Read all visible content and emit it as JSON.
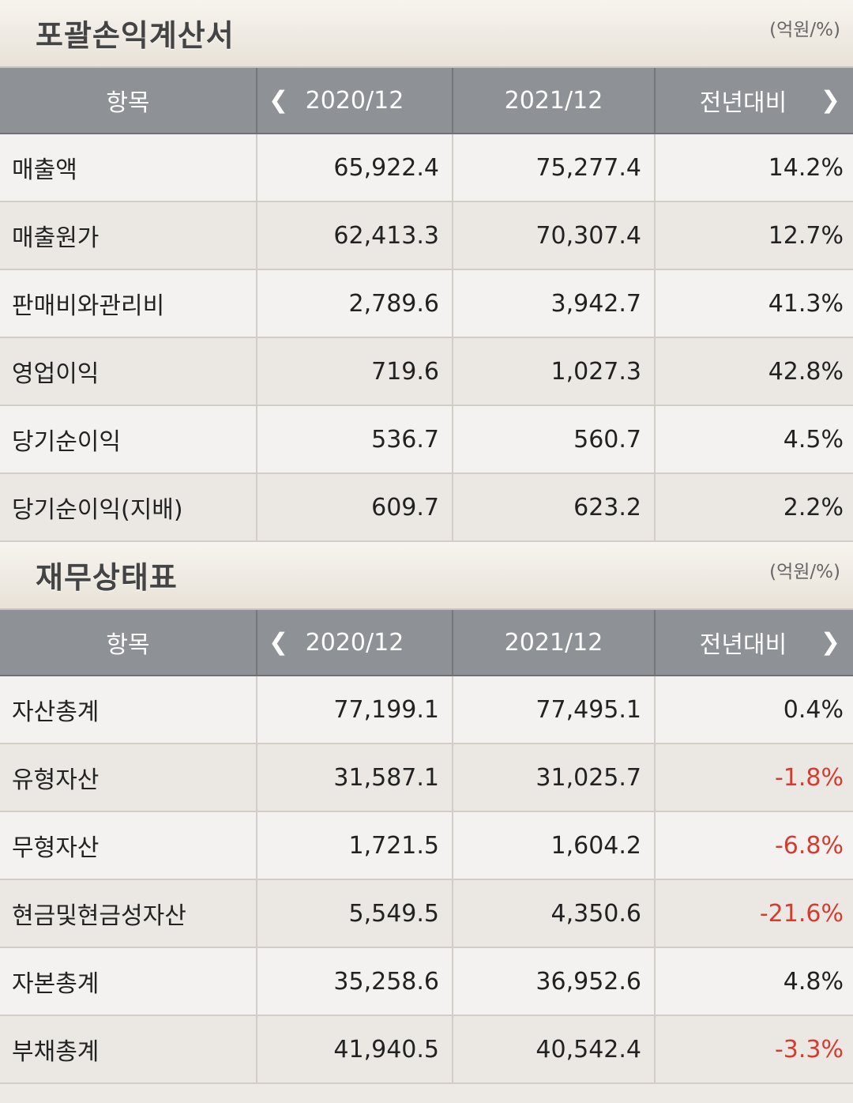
{
  "income": {
    "title": "포괄손익계산서",
    "unit": "(억원/%)",
    "headers": {
      "item": "항목",
      "prev": "2020/12",
      "curr": "2021/12",
      "yoy": "전년대비"
    },
    "rows": [
      {
        "label": "매출액",
        "prev": "65,922.4",
        "curr": "75,277.4",
        "yoy": "14.2%"
      },
      {
        "label": "매출원가",
        "prev": "62,413.3",
        "curr": "70,307.4",
        "yoy": "12.7%"
      },
      {
        "label": "판매비와관리비",
        "prev": "2,789.6",
        "curr": "3,942.7",
        "yoy": "41.3%"
      },
      {
        "label": "영업이익",
        "prev": "719.6",
        "curr": "1,027.3",
        "yoy": "42.8%"
      },
      {
        "label": "당기순이익",
        "prev": "536.7",
        "curr": "560.7",
        "yoy": "4.5%"
      },
      {
        "label": "당기순이익(지배)",
        "prev": "609.7",
        "curr": "623.2",
        "yoy": "2.2%"
      }
    ]
  },
  "balance": {
    "title": "재무상태표",
    "unit": "(억원/%)",
    "headers": {
      "item": "항목",
      "prev": "2020/12",
      "curr": "2021/12",
      "yoy": "전년대비"
    },
    "rows": [
      {
        "label": "자산총계",
        "prev": "77,199.1",
        "curr": "77,495.1",
        "yoy": "0.4%"
      },
      {
        "label": "유형자산",
        "prev": "31,587.1",
        "curr": "31,025.7",
        "yoy": "-1.8%"
      },
      {
        "label": "무형자산",
        "prev": "1,721.5",
        "curr": "1,604.2",
        "yoy": "-6.8%"
      },
      {
        "label": "현금및현금성자산",
        "prev": "5,549.5",
        "curr": "4,350.6",
        "yoy": "-21.6%"
      },
      {
        "label": "자본총계",
        "prev": "35,258.6",
        "curr": "36,952.6",
        "yoy": "4.8%"
      },
      {
        "label": "부채총계",
        "prev": "41,940.5",
        "curr": "40,542.4",
        "yoy": "-3.3%"
      }
    ]
  },
  "colors": {
    "negative": "#d63b2f",
    "header_bg": "#8e9196"
  },
  "icons": {
    "prev": "chevron-left-icon",
    "next": "chevron-right-icon"
  }
}
